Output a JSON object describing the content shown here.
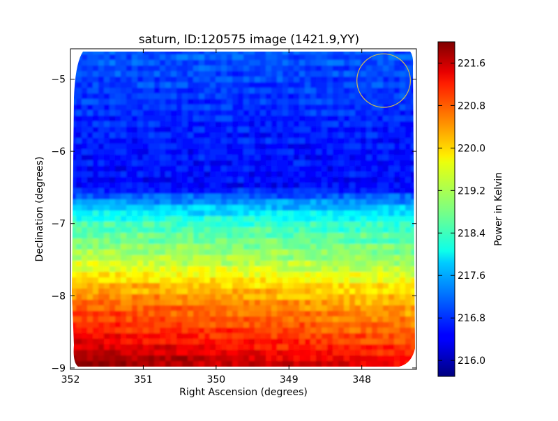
{
  "chart_data": {
    "type": "heatmap",
    "title": "saturn, ID:120575 image (1421.9,YY)",
    "xlabel": "Right Ascension (degrees)",
    "ylabel": "Declination (degrees)",
    "xlim": [
      352.0,
      347.25
    ],
    "ylim": [
      -9.02,
      -4.58
    ],
    "x_ticks": [
      352,
      351,
      350,
      349,
      348
    ],
    "x_tick_labels": [
      "352",
      "351",
      "350",
      "349",
      "348"
    ],
    "y_ticks": [
      -5,
      -6,
      -7,
      -8,
      -9
    ],
    "y_tick_labels": [
      "−5",
      "−6",
      "−7",
      "−8",
      "−9"
    ],
    "grid": false,
    "colormap": "jet",
    "colorbar": {
      "label": "Power in Kelvin",
      "range": [
        215.7,
        222.0
      ],
      "ticks": [
        221.6,
        220.8,
        220.0,
        219.2,
        218.4,
        217.6,
        216.8,
        216.0
      ],
      "tick_labels": [
        "221.6",
        "220.8",
        "220.0",
        "219.2",
        "218.4",
        "217.6",
        "216.8",
        "216.0"
      ]
    },
    "dec_profile": [
      {
        "dec": -4.62,
        "value": 217.0
      },
      {
        "dec": -5.0,
        "value": 216.9
      },
      {
        "dec": -5.5,
        "value": 216.7
      },
      {
        "dec": -6.0,
        "value": 216.6
      },
      {
        "dec": -6.5,
        "value": 216.5
      },
      {
        "dec": -6.75,
        "value": 217.6
      },
      {
        "dec": -7.0,
        "value": 218.4
      },
      {
        "dec": -7.5,
        "value": 219.1
      },
      {
        "dec": -7.85,
        "value": 219.9
      },
      {
        "dec": -8.2,
        "value": 220.5
      },
      {
        "dec": -8.6,
        "value": 221.0
      },
      {
        "dec": -8.95,
        "value": 221.6
      }
    ],
    "east_west_gradient": 0.35,
    "circle_marker": {
      "ra": 347.7,
      "dec": -5.02,
      "radius_deg": 0.37,
      "color": "#c8b85a"
    }
  }
}
